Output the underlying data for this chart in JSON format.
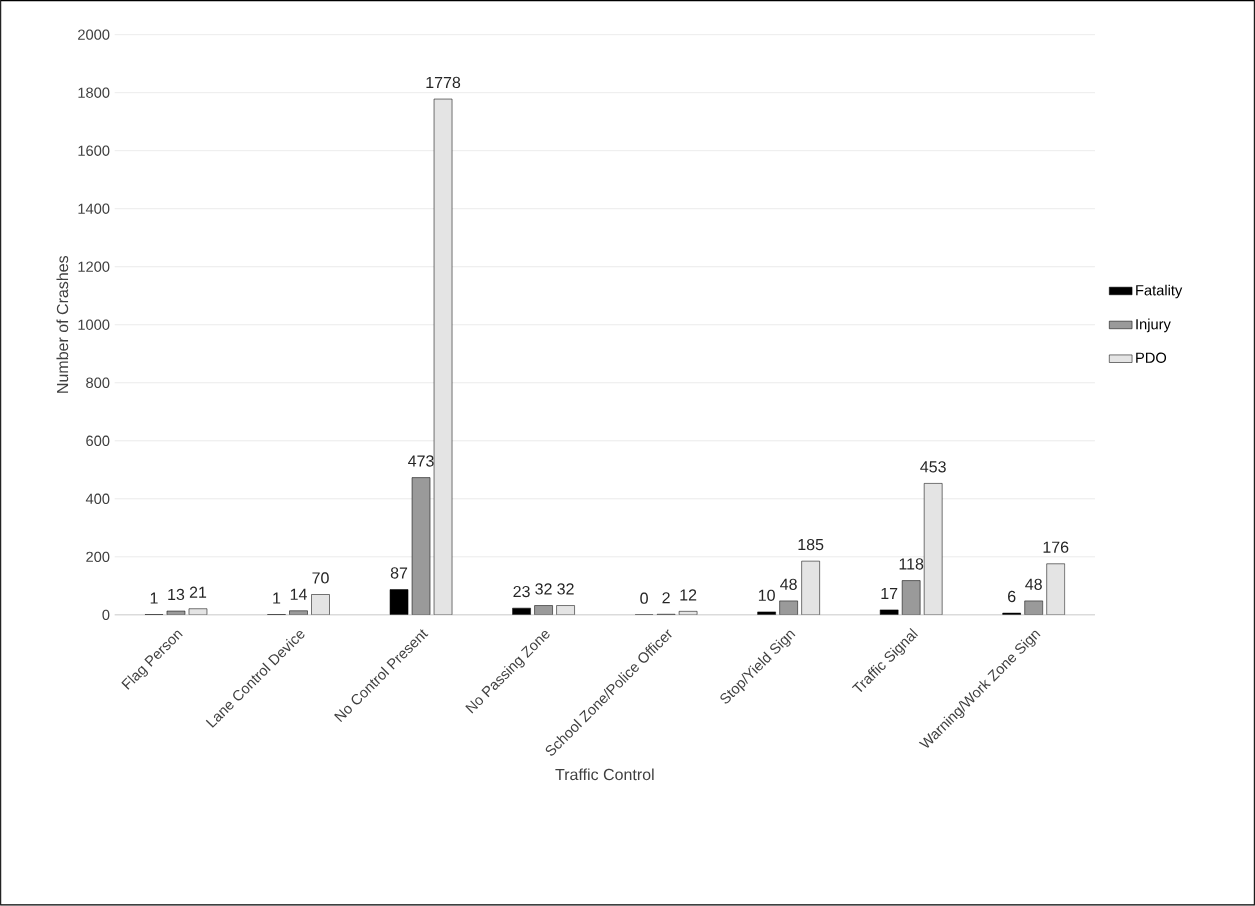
{
  "chart_data": {
    "type": "bar",
    "xlabel": "Traffic Control",
    "ylabel": "Number of Crashes",
    "categories": [
      "Flag Person",
      "Lane Control Device",
      "No Control Present",
      "No Passing Zone",
      "School Zone/Police Officer",
      "Stop/Yield Sign",
      "Traffic Signal",
      "Warning/Work Zone Sign"
    ],
    "series": [
      {
        "name": "Fatality",
        "color": "#000000",
        "values": [
          1,
          1,
          87,
          23,
          0,
          10,
          17,
          6
        ]
      },
      {
        "name": "Injury",
        "color": "#9a9a9a",
        "values": [
          13,
          14,
          473,
          32,
          2,
          48,
          118,
          48
        ]
      },
      {
        "name": "PDO",
        "color": "#e4e4e4",
        "values": [
          21,
          70,
          1778,
          32,
          12,
          185,
          453,
          176
        ]
      }
    ],
    "ylim": [
      0,
      2000
    ],
    "yticks": [
      0,
      200,
      400,
      600,
      800,
      1000,
      1200,
      1400,
      1600,
      1800,
      2000
    ],
    "grid": "y",
    "legend": "right",
    "data_labels": true
  }
}
